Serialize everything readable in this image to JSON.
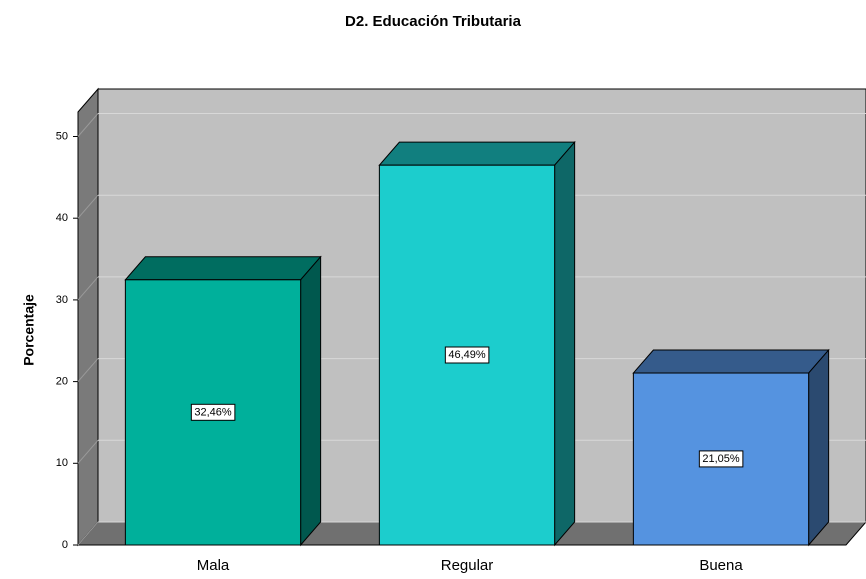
{
  "chart_data": {
    "type": "bar3d",
    "title": "D2. Educación Tributaria",
    "y_label": "Porcentaje",
    "categories": [
      "Mala",
      "Regular",
      "Buena"
    ],
    "values": [
      32.46,
      46.49,
      21.05
    ],
    "value_labels": [
      "32,46%",
      "46,49%",
      "21,05%"
    ],
    "colors": [
      "#00b09b",
      "#1ccdcd",
      "#5593e0"
    ],
    "ylim": [
      0,
      53
    ],
    "yticks": [
      0,
      10,
      20,
      30,
      40,
      50
    ],
    "grid": true
  }
}
